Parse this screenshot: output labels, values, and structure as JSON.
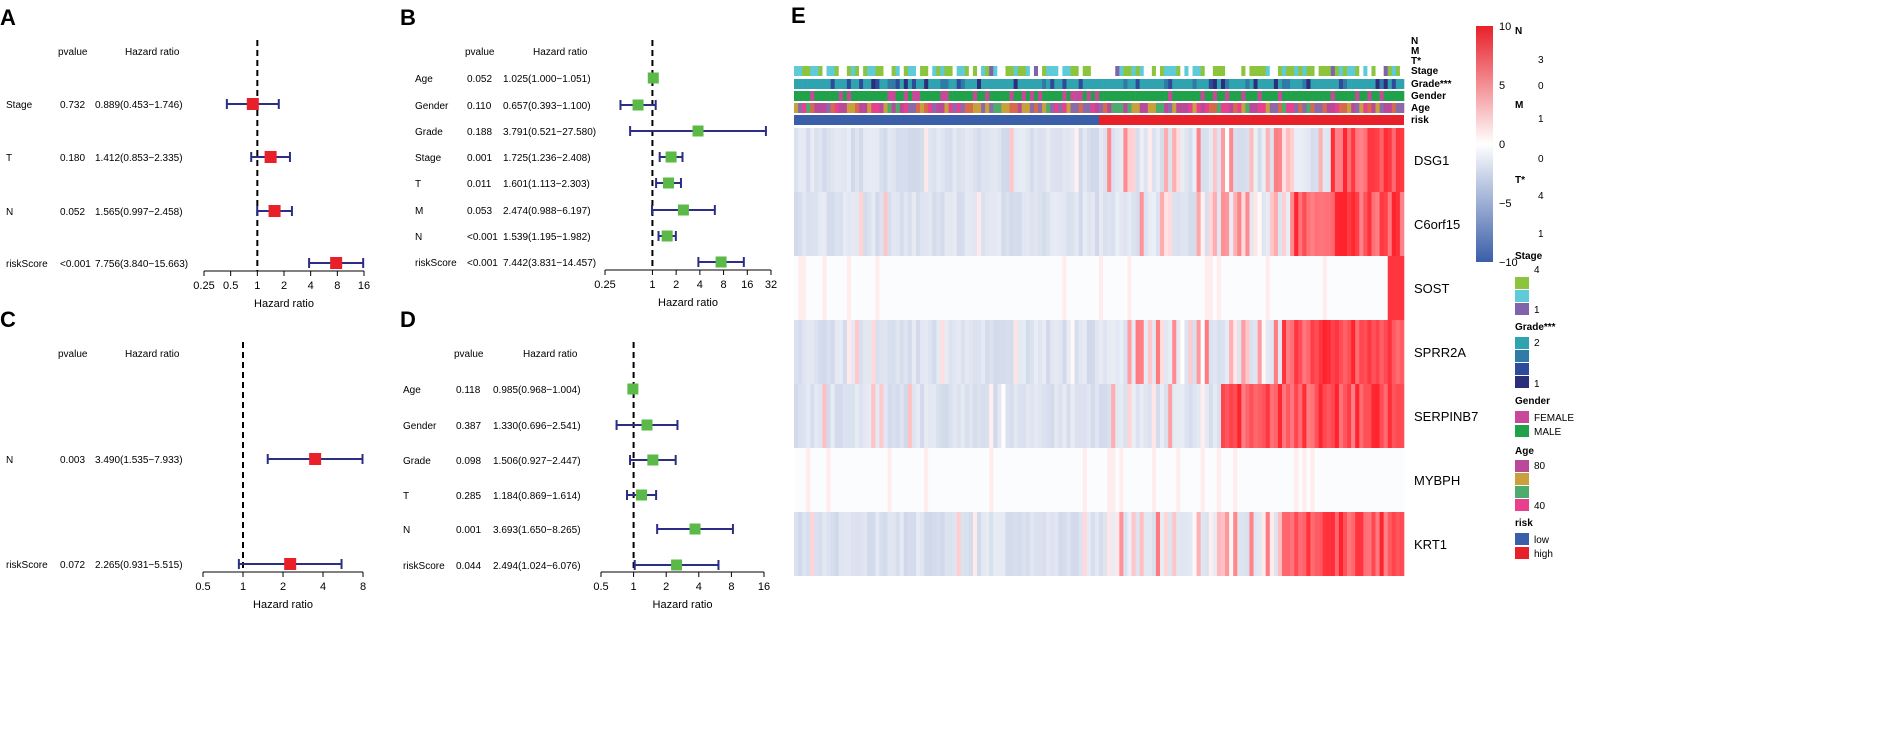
{
  "colors": {
    "red_box": "#e8202a",
    "green_box": "#5bb947",
    "ci_line": "#2b2e84",
    "risk_low": "#3a5ea8",
    "risk_high": "#e8202a",
    "heat_low": "#3a5ea8",
    "heat_mid": "#ffffff",
    "heat_high": "#e8202a"
  },
  "chart_data": [
    {
      "panel": "A",
      "type": "forest",
      "pvalue_header": "pvalue",
      "hr_header": "Hazard ratio",
      "xlabel": "Hazard ratio",
      "xscale": "log2",
      "xlim": [
        0.25,
        16
      ],
      "ticks": [
        0.25,
        0.5,
        1,
        2,
        4,
        8,
        16
      ],
      "tick_labels": [
        "0.25",
        "0.5",
        "1",
        "2",
        "4",
        "8",
        "16"
      ],
      "box_color": "red",
      "rows": [
        {
          "label": "Stage",
          "pvalue": "0.732",
          "hr_text": "0.889(0.453−1.746)",
          "hr": 0.889,
          "low": 0.453,
          "high": 1.746
        },
        {
          "label": "T",
          "pvalue": "0.180",
          "hr_text": "1.412(0.853−2.335)",
          "hr": 1.412,
          "low": 0.853,
          "high": 2.335
        },
        {
          "label": "N",
          "pvalue": "0.052",
          "hr_text": "1.565(0.997−2.458)",
          "hr": 1.565,
          "low": 0.997,
          "high": 2.458
        },
        {
          "label": "riskScore",
          "pvalue": "<0.001",
          "hr_text": "7.756(3.840−15.663)",
          "hr": 7.756,
          "low": 3.84,
          "high": 15.663
        }
      ]
    },
    {
      "panel": "B",
      "type": "forest",
      "pvalue_header": "pvalue",
      "hr_header": "Hazard ratio",
      "xlabel": "Hazard ratio",
      "xscale": "log2",
      "xlim": [
        0.25,
        32
      ],
      "ticks": [
        0.25,
        1,
        2,
        4,
        8,
        16,
        32
      ],
      "tick_labels": [
        "0.25",
        "1",
        "2",
        "4",
        "8",
        "16",
        "32"
      ],
      "box_color": "green",
      "rows": [
        {
          "label": "Age",
          "pvalue": "0.052",
          "hr_text": "1.025(1.000−1.051)",
          "hr": 1.025,
          "low": 1.0,
          "high": 1.051
        },
        {
          "label": "Gender",
          "pvalue": "0.110",
          "hr_text": "0.657(0.393−1.100)",
          "hr": 0.657,
          "low": 0.393,
          "high": 1.1
        },
        {
          "label": "Grade",
          "pvalue": "0.188",
          "hr_text": "3.791(0.521−27.580)",
          "hr": 3.791,
          "low": 0.521,
          "high": 27.58
        },
        {
          "label": "Stage",
          "pvalue": "0.001",
          "hr_text": "1.725(1.236−2.408)",
          "hr": 1.725,
          "low": 1.236,
          "high": 2.408
        },
        {
          "label": "T",
          "pvalue": "0.011",
          "hr_text": "1.601(1.113−2.303)",
          "hr": 1.601,
          "low": 1.113,
          "high": 2.303
        },
        {
          "label": "M",
          "pvalue": "0.053",
          "hr_text": "2.474(0.988−6.197)",
          "hr": 2.474,
          "low": 0.988,
          "high": 6.197
        },
        {
          "label": "N",
          "pvalue": "<0.001",
          "hr_text": "1.539(1.195−1.982)",
          "hr": 1.539,
          "low": 1.195,
          "high": 1.982
        },
        {
          "label": "riskScore",
          "pvalue": "<0.001",
          "hr_text": "7.442(3.831−14.457)",
          "hr": 7.442,
          "low": 3.831,
          "high": 14.457
        }
      ]
    },
    {
      "panel": "C",
      "type": "forest",
      "pvalue_header": "pvalue",
      "hr_header": "Hazard ratio",
      "xlabel": "Hazard ratio",
      "xscale": "log2",
      "xlim": [
        0.5,
        8
      ],
      "ticks": [
        0.5,
        1,
        2,
        4,
        8
      ],
      "tick_labels": [
        "0.5",
        "1",
        "2",
        "4",
        "8"
      ],
      "box_color": "red",
      "rows": [
        {
          "label": "N",
          "pvalue": "0.003",
          "hr_text": "3.490(1.535−7.933)",
          "hr": 3.49,
          "low": 1.535,
          "high": 7.933
        },
        {
          "label": "riskScore",
          "pvalue": "0.072",
          "hr_text": "2.265(0.931−5.515)",
          "hr": 2.265,
          "low": 0.931,
          "high": 5.515
        }
      ]
    },
    {
      "panel": "D",
      "type": "forest",
      "pvalue_header": "pvalue",
      "hr_header": "Hazard ratio",
      "xlabel": "Hazard ratio",
      "xscale": "log2",
      "xlim": [
        0.5,
        16
      ],
      "ticks": [
        0.5,
        1,
        2,
        4,
        8,
        16
      ],
      "tick_labels": [
        "0.5",
        "1",
        "2",
        "4",
        "8",
        "16"
      ],
      "box_color": "green",
      "rows": [
        {
          "label": "Age",
          "pvalue": "0.118",
          "hr_text": "0.985(0.968−1.004)",
          "hr": 0.985,
          "low": 0.968,
          "high": 1.004
        },
        {
          "label": "Gender",
          "pvalue": "0.387",
          "hr_text": "1.330(0.696−2.541)",
          "hr": 1.33,
          "low": 0.696,
          "high": 2.541
        },
        {
          "label": "Grade",
          "pvalue": "0.098",
          "hr_text": "1.506(0.927−2.447)",
          "hr": 1.506,
          "low": 0.927,
          "high": 2.447
        },
        {
          "label": "T",
          "pvalue": "0.285",
          "hr_text": "1.184(0.869−1.614)",
          "hr": 1.184,
          "low": 0.869,
          "high": 1.614
        },
        {
          "label": "N",
          "pvalue": "0.001",
          "hr_text": "3.693(1.650−8.265)",
          "hr": 3.693,
          "low": 1.65,
          "high": 8.265
        },
        {
          "label": "riskScore",
          "pvalue": "0.044",
          "hr_text": "2.494(1.024−6.076)",
          "hr": 2.494,
          "low": 1.024,
          "high": 6.076
        }
      ]
    },
    {
      "panel": "E",
      "type": "heatmap",
      "annotation_tracks": [
        "N",
        "M",
        "T*",
        "Stage",
        "Grade***",
        "Gender",
        "Age",
        "risk"
      ],
      "genes": [
        "DSG1",
        "C6orf15",
        "SOST",
        "SPRR2A",
        "SERPINB7",
        "MYBPH",
        "KRT1"
      ],
      "n_samples": 150,
      "n_low_risk": 75,
      "colorbar": {
        "range": [
          -10,
          10
        ],
        "ticks": [
          10,
          5,
          0,
          -5,
          -10
        ],
        "tick_labels": [
          "10",
          "5",
          "0",
          "−5",
          "−10"
        ]
      },
      "legend": [
        {
          "title": "N",
          "entries": [
            "3",
            "0"
          ]
        },
        {
          "title": "M",
          "entries": [
            "1",
            "0"
          ]
        },
        {
          "title": "T*",
          "entries": [
            "4",
            "1"
          ]
        },
        {
          "title": "Stage",
          "entries": [
            "4",
            "",
            "1"
          ]
        },
        {
          "title": "Grade***",
          "entries": [
            "2",
            "",
            "",
            "1"
          ]
        },
        {
          "title": "Gender",
          "entries": [
            "FEMALE",
            "MALE"
          ]
        },
        {
          "title": "Age",
          "entries": [
            "80",
            "",
            "",
            "40"
          ]
        },
        {
          "title": "risk",
          "entries": [
            "low",
            "high"
          ]
        }
      ]
    }
  ],
  "panel_labels": [
    "A",
    "B",
    "C",
    "D",
    "E"
  ]
}
